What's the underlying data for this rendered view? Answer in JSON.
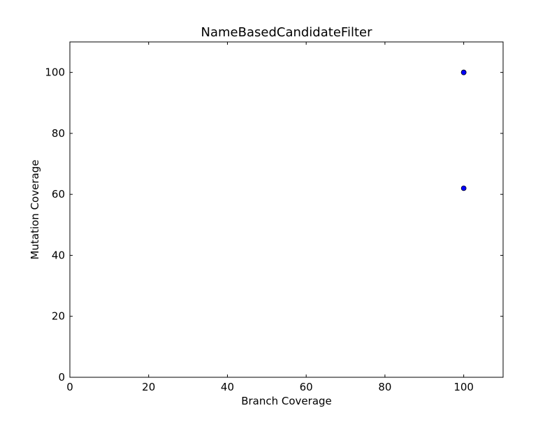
{
  "chart_data": {
    "type": "scatter",
    "title": "NameBasedCandidateFilter",
    "xlabel": "Branch Coverage",
    "ylabel": "Mutation Coverage",
    "xlim": [
      0,
      110
    ],
    "ylim": [
      0,
      110
    ],
    "xticks": [
      0,
      20,
      40,
      60,
      80,
      100
    ],
    "yticks": [
      0,
      20,
      40,
      60,
      80,
      100
    ],
    "xtick_labels": [
      "0",
      "20",
      "40",
      "60",
      "80",
      "100"
    ],
    "ytick_labels": [
      "0",
      "20",
      "40",
      "60",
      "80",
      "100"
    ],
    "grid": false,
    "legend": "none",
    "marker_color": "#0000ff",
    "series": [
      {
        "x": [
          100,
          100,
          100
        ],
        "y": [
          100,
          100,
          62
        ]
      }
    ]
  }
}
